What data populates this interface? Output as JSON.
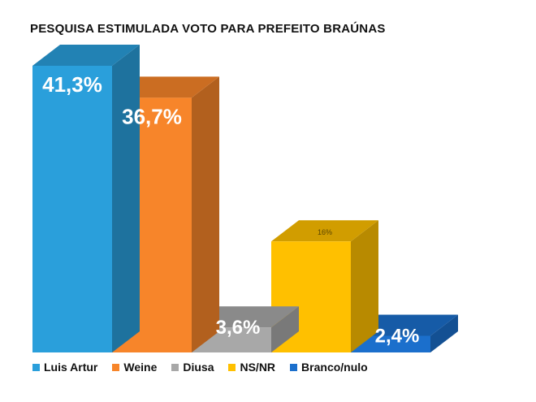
{
  "chart_data": {
    "type": "bar",
    "style": "3d",
    "title": "PESQUISA ESTIMULADA VOTO PARA PREFEITO BRAÚNAS",
    "categories": [
      "Luis Artur",
      "Weine",
      "Diusa",
      "NS/NR",
      "Branco/nulo"
    ],
    "values": [
      41.3,
      36.7,
      3.6,
      16,
      2.4
    ],
    "value_labels": [
      "41,3%",
      "36,7%",
      "3,6%",
      "16%",
      "2,4%"
    ],
    "colors": [
      "#2a9fdb",
      "#f7852a",
      "#a8a8a8",
      "#ffc000",
      "#1b6fcc"
    ],
    "legend_position": "bottom",
    "grid": false
  }
}
